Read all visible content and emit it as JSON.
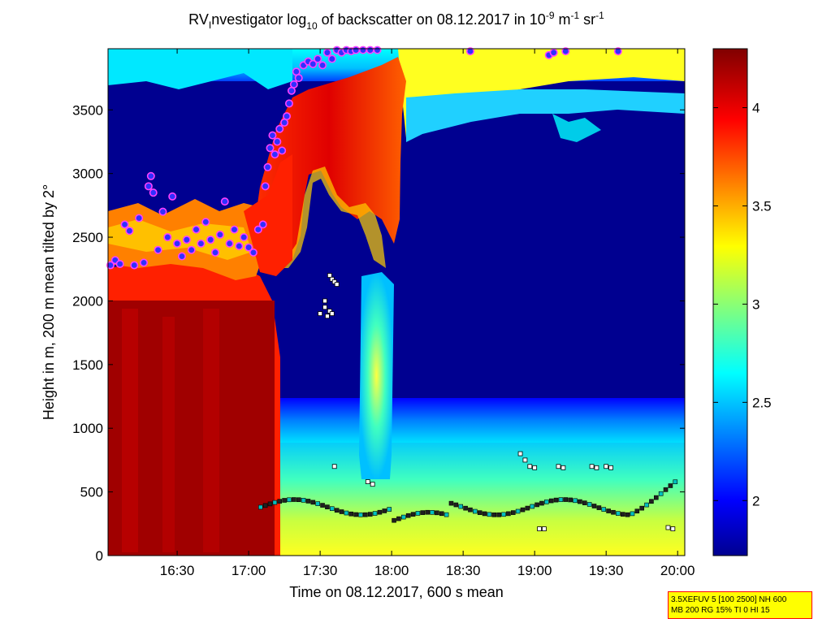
{
  "chart_data": {
    "type": "heatmap",
    "title_parts": {
      "prefix": "RV",
      "sub1": "I",
      "mid": "nvestigator log",
      "sub2": "10",
      "mid2": " of backscatter on 08.12.2017 in 10",
      "sup1": "-9",
      "mid3": " m",
      "sup2": "-1",
      "mid4": " sr",
      "sup3": "-1"
    },
    "xlabel": "Time on 08.12.2017, 600 s mean",
    "ylabel": "Height in m, 200 m mean tilted by 2°",
    "x_ticks": [
      "16:30",
      "17:00",
      "17:30",
      "18:00",
      "18:30",
      "19:00",
      "19:30",
      "20:00"
    ],
    "x_tick_minutes": [
      990,
      1020,
      1050,
      1080,
      1110,
      1140,
      1170,
      1200
    ],
    "xlim_minutes": [
      961,
      1203
    ],
    "y_ticks": [
      0,
      500,
      1000,
      1500,
      2000,
      2500,
      3000,
      3500
    ],
    "ylim": [
      0,
      3980
    ],
    "colorbar": {
      "ticks": [
        2,
        2.5,
        3,
        3.5,
        4
      ],
      "tick_labels": [
        "2",
        "2.5",
        "3",
        "3.5",
        "4"
      ],
      "range": [
        1.72,
        4.3
      ],
      "colormap": "jet"
    },
    "layers": {
      "cloud_top_markers": "blue dots with magenta edge",
      "boundary_layer_markers": "small squares"
    },
    "colors": {
      "dark_red": "#800000",
      "red": "#e00000",
      "orange": "#ff8000",
      "yellow": "#ffff00",
      "cyan": "#00ffff",
      "blue": "#0000ff",
      "dark_blue": "#000090"
    }
  },
  "info_box": {
    "line1": "3.5XEFUV 5 [100 2500] NH 600",
    "line2": "MB 200 RG 15% TI 0 HI 15"
  }
}
